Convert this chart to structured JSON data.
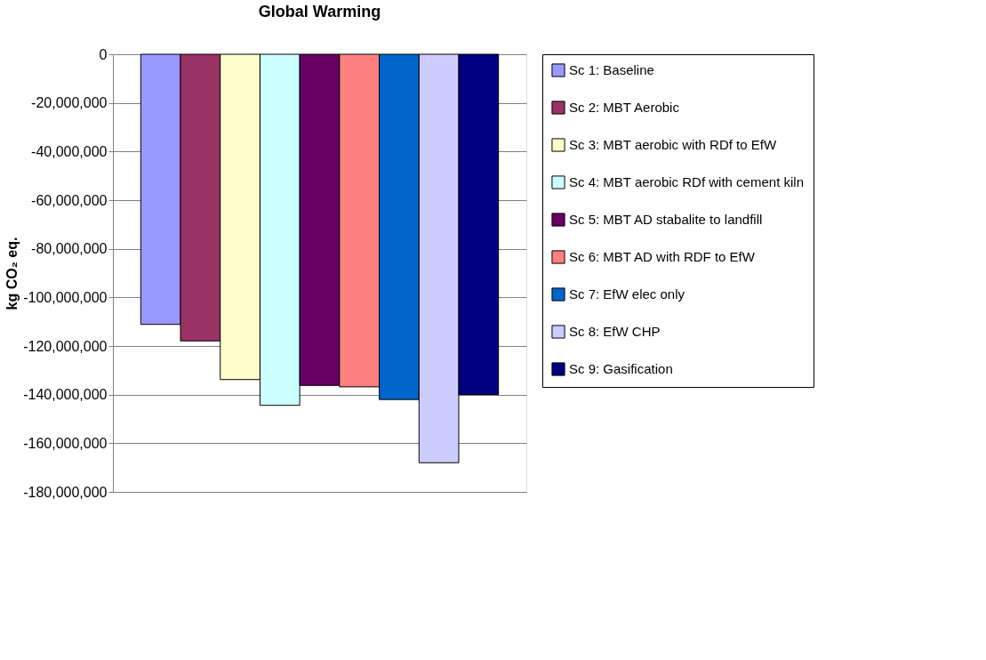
{
  "chart_data": {
    "type": "bar",
    "title": "Global Warming",
    "ylabel": "kg CO₂ eq.",
    "categories": [
      null
    ],
    "series": [
      {
        "name": "Sc 1: Baseline",
        "color": "#9999ff",
        "values": [
          -111100000
        ]
      },
      {
        "name": "Sc 2: MBT Aerobic",
        "color": "#993366",
        "values": [
          -117900000
        ]
      },
      {
        "name": "Sc 3: MBT aerobic with RDf to EfW",
        "color": "#ffffcc",
        "values": [
          -133800000
        ]
      },
      {
        "name": "Sc 4: MBT aerobic RDf with cement kiln",
        "color": "#ccffff",
        "values": [
          -144400000
        ]
      },
      {
        "name": "Sc 5: MBT AD stabalite to landfill",
        "color": "#660066",
        "values": [
          -136200000
        ]
      },
      {
        "name": "Sc 6: MBT AD with RDF to EfW",
        "color": "#ff8080",
        "values": [
          -136800000
        ]
      },
      {
        "name": "Sc 7: EfW elec only",
        "color": "#0066cc",
        "values": [
          -142000000
        ]
      },
      {
        "name": "Sc 8: EfW CHP",
        "color": "#ccccff",
        "values": [
          -168000000
        ]
      },
      {
        "name": "Sc 9: Gasification",
        "color": "#000080",
        "values": [
          -140000000
        ]
      }
    ],
    "ylim": [
      -180000000,
      0
    ],
    "yticks": [
      0,
      {
        "value": -20000000,
        "label": "-20,000,000"
      },
      {
        "value": -40000000,
        "label": "-40,000,000"
      },
      {
        "value": -60000000,
        "label": "-60,000,000"
      },
      {
        "value": -80000000,
        "label": "-80,000,000"
      },
      {
        "value": -100000000,
        "label": "-100,000,000"
      },
      {
        "value": -120000000,
        "label": "-120,000,000"
      },
      {
        "value": -140000000,
        "label": "-140,000,000"
      },
      {
        "value": -160000000,
        "label": "-160,000,000"
      },
      {
        "value": -180000000,
        "label": "-180,000,000"
      }
    ],
    "grid": "y",
    "legend": "right"
  }
}
